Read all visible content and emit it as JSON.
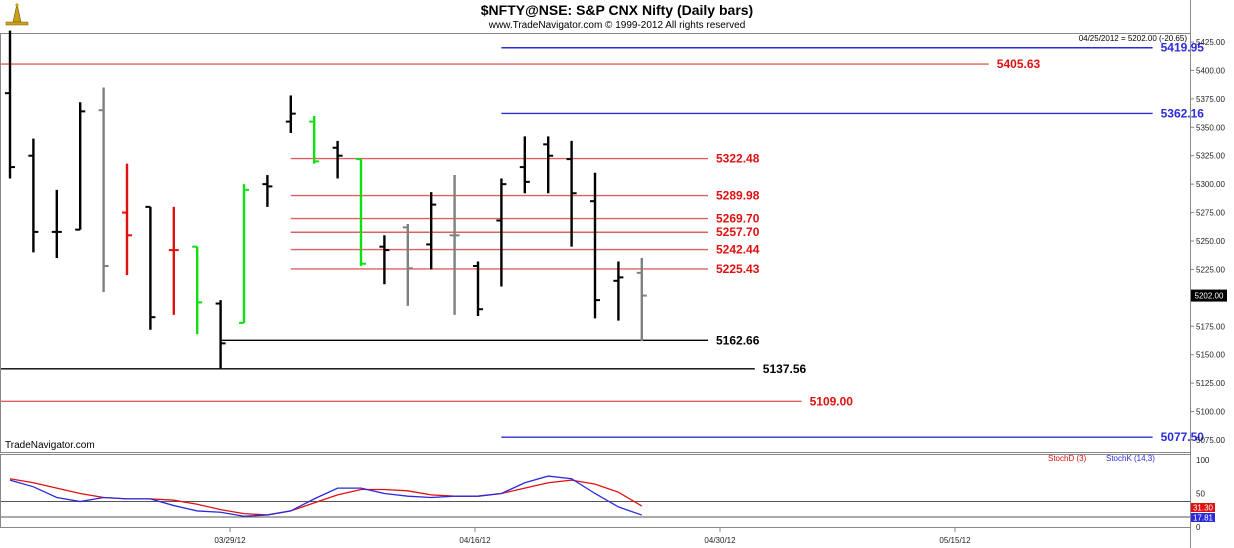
{
  "title": "$NFTY@NSE:  S&P CNX Nifty  (Daily bars)",
  "copyright": "www.TradeNavigator.com © 1999-2012 All rights reserved",
  "watermark": "TradeNavigator.com",
  "last_info": "04/25/2012 = 5202.00 (-20.65)",
  "last_price_label": "5202.00",
  "chart_data": [
    {
      "type": "ohlc",
      "title": "$NFTY@NSE:  S&P CNX Nifty  (Daily bars)",
      "ylim": [
        5055,
        5440
      ],
      "y_ticks": [
        "5425.00",
        "5400.00",
        "5375.00",
        "5350.00",
        "5325.00",
        "5300.00",
        "5275.00",
        "5250.00",
        "5225.00",
        "5200.00",
        "5175.00",
        "5150.00",
        "5125.00",
        "5100.00",
        "5075.00"
      ],
      "x_tick_labels": [
        "03/29/12",
        "04/16/12",
        "04/30/12",
        "05/15/12"
      ],
      "bar_colors": {
        "normal": "#000000",
        "down": "#e01010",
        "up": "#10e010",
        "flat": "#808080"
      },
      "bars": [
        {
          "o": 5380,
          "h": 5435,
          "l": 5305,
          "c": 5315,
          "color": "normal"
        },
        {
          "o": 5325,
          "h": 5340,
          "l": 5240,
          "c": 5258,
          "color": "normal"
        },
        {
          "o": 5258,
          "h": 5295,
          "l": 5235,
          "c": 5258,
          "color": "normal"
        },
        {
          "o": 5260,
          "h": 5372,
          "l": 5260,
          "c": 5364,
          "color": "normal"
        },
        {
          "o": 5365,
          "h": 5385,
          "l": 5205,
          "c": 5228,
          "color": "flat"
        },
        {
          "o": 5275,
          "h": 5318,
          "l": 5220,
          "c": 5255,
          "color": "down"
        },
        {
          "o": 5280,
          "h": 5280,
          "l": 5172,
          "c": 5183,
          "color": "normal"
        },
        {
          "o": 5242,
          "h": 5280,
          "l": 5185,
          "c": 5242,
          "color": "down"
        },
        {
          "o": 5245,
          "h": 5245,
          "l": 5168,
          "c": 5196,
          "color": "up"
        },
        {
          "o": 5195,
          "h": 5198,
          "l": 5138,
          "c": 5160,
          "color": "normal"
        },
        {
          "o": 5178,
          "h": 5300,
          "l": 5178,
          "c": 5295,
          "color": "up"
        },
        {
          "o": 5300,
          "h": 5308,
          "l": 5280,
          "c": 5298,
          "color": "normal"
        },
        {
          "o": 5355,
          "h": 5378,
          "l": 5345,
          "c": 5362,
          "color": "normal"
        },
        {
          "o": 5355,
          "h": 5360,
          "l": 5318,
          "c": 5320,
          "color": "up"
        },
        {
          "o": 5332,
          "h": 5338,
          "l": 5305,
          "c": 5325,
          "color": "normal"
        },
        {
          "o": 5322,
          "h": 5322,
          "l": 5228,
          "c": 5230,
          "color": "up"
        },
        {
          "o": 5245,
          "h": 5255,
          "l": 5212,
          "c": 5242,
          "color": "normal"
        },
        {
          "o": 5262,
          "h": 5265,
          "l": 5193,
          "c": 5226,
          "color": "flat"
        },
        {
          "o": 5247,
          "h": 5293,
          "l": 5225,
          "c": 5282,
          "color": "normal"
        },
        {
          "o": 5255,
          "h": 5308,
          "l": 5185,
          "c": 5255,
          "color": "flat"
        },
        {
          "o": 5228,
          "h": 5232,
          "l": 5184,
          "c": 5190,
          "color": "normal"
        },
        {
          "o": 5268,
          "h": 5305,
          "l": 5210,
          "c": 5300,
          "color": "normal"
        },
        {
          "o": 5315,
          "h": 5342,
          "l": 5292,
          "c": 5302,
          "color": "normal"
        },
        {
          "o": 5335,
          "h": 5342,
          "l": 5292,
          "c": 5325,
          "color": "normal"
        },
        {
          "o": 5322,
          "h": 5338,
          "l": 5245,
          "c": 5292,
          "color": "normal"
        },
        {
          "o": 5285,
          "h": 5310,
          "l": 5182,
          "c": 5198,
          "color": "normal"
        },
        {
          "o": 5215,
          "h": 5232,
          "l": 5180,
          "c": 5218,
          "color": "normal"
        },
        {
          "o": 5222,
          "h": 5235,
          "l": 5162,
          "c": 5202,
          "color": "flat"
        }
      ],
      "levels": [
        {
          "value": 5419.95,
          "label": "5419.95",
          "color": "#2b2bdc",
          "text_color": "#2b2bdc",
          "from": 21,
          "to": 49
        },
        {
          "value": 5405.63,
          "label": "5405.63",
          "color": "#e06060",
          "text_color": "#e01010",
          "from": 0,
          "to": 42
        },
        {
          "value": 5362.16,
          "label": "5362.16",
          "color": "#2b2bdc",
          "text_color": "#2b2bdc",
          "from": 21,
          "to": 49
        },
        {
          "value": 5322.48,
          "label": "5322.48",
          "color": "#e06060",
          "text_color": "#e01010",
          "from": 12,
          "to": 30
        },
        {
          "value": 5289.98,
          "label": "5289.98",
          "color": "#e06060",
          "text_color": "#e01010",
          "from": 12,
          "to": 30
        },
        {
          "value": 5269.7,
          "label": "5269.70",
          "color": "#e06060",
          "text_color": "#e01010",
          "from": 12,
          "to": 30
        },
        {
          "value": 5257.7,
          "label": "5257.70",
          "color": "#e06060",
          "text_color": "#e01010",
          "from": 12,
          "to": 30
        },
        {
          "value": 5242.44,
          "label": "5242.44",
          "color": "#e06060",
          "text_color": "#e01010",
          "from": 12,
          "to": 30
        },
        {
          "value": 5225.43,
          "label": "5225.43",
          "color": "#e06060",
          "text_color": "#e01010",
          "from": 12,
          "to": 30
        },
        {
          "value": 5162.66,
          "label": "5162.66",
          "color": "#000000",
          "text_color": "#000000",
          "from": 9,
          "to": 30
        },
        {
          "value": 5137.56,
          "label": "5137.56",
          "color": "#000000",
          "text_color": "#000000",
          "from": 0,
          "to": 32
        },
        {
          "value": 5109.0,
          "label": "5109.00",
          "color": "#e06060",
          "text_color": "#e01010",
          "from": 0,
          "to": 34
        },
        {
          "value": 5077.5,
          "label": "5077.50",
          "color": "#2b2bdc",
          "text_color": "#2b2bdc",
          "from": 21,
          "to": 49
        }
      ]
    },
    {
      "type": "line",
      "ylim": [
        0,
        100
      ],
      "y_ticks": [
        "100",
        "50",
        "0"
      ],
      "reference_lines": [
        38,
        15
      ],
      "last_labels": [
        {
          "text": "31.30",
          "color": "#e01010"
        },
        {
          "text": "17.81",
          "color": "#2b2bdc"
        }
      ],
      "legend": [
        {
          "text": "StochD (3)",
          "color": "#e01010"
        },
        {
          "text": "StochK (14,3)",
          "color": "#2b2bdc"
        }
      ],
      "series": [
        {
          "name": "StochD (3)",
          "color": "#e01010",
          "values": [
            72,
            66,
            58,
            50,
            44,
            42,
            42,
            40,
            34,
            26,
            20,
            18,
            24,
            36,
            48,
            56,
            56,
            54,
            48,
            46,
            46,
            50,
            58,
            66,
            70,
            64,
            52,
            31.3
          ]
        },
        {
          "name": "StochK (14,3)",
          "color": "#2b2bdc",
          "values": [
            70,
            60,
            44,
            38,
            44,
            42,
            42,
            32,
            24,
            22,
            16,
            18,
            24,
            42,
            58,
            58,
            50,
            46,
            44,
            46,
            46,
            50,
            66,
            76,
            72,
            50,
            30,
            17.81
          ]
        }
      ]
    }
  ]
}
